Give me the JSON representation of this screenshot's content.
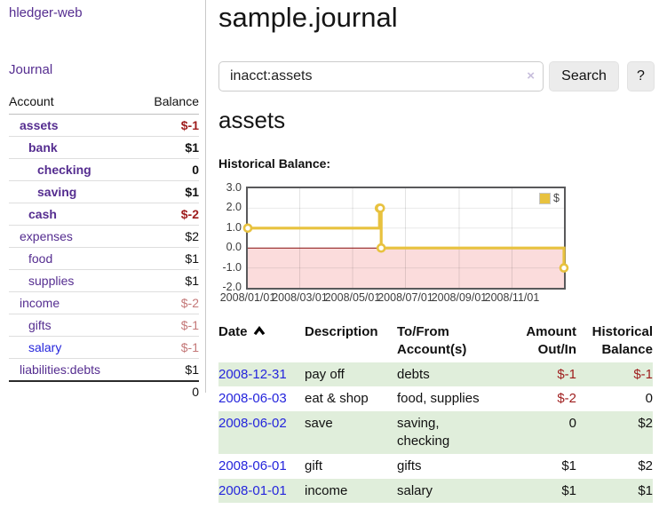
{
  "brand": "hledger-web",
  "nav": {
    "journal": "Journal"
  },
  "sidebar": {
    "headers": {
      "account": "Account",
      "balance": "Balance"
    },
    "accounts": [
      {
        "name": "assets",
        "balance": "$-1"
      },
      {
        "name": "bank",
        "balance": "$1"
      },
      {
        "name": "checking",
        "balance": "0"
      },
      {
        "name": "saving",
        "balance": "$1"
      },
      {
        "name": "cash",
        "balance": "$-2"
      },
      {
        "name": "expenses",
        "balance": "$2"
      },
      {
        "name": "food",
        "balance": "$1"
      },
      {
        "name": "supplies",
        "balance": "$1"
      },
      {
        "name": "income",
        "balance": "$-2"
      },
      {
        "name": "gifts",
        "balance": "$-1"
      },
      {
        "name": "salary",
        "balance": "$-1"
      },
      {
        "name": "liabilities:debts",
        "balance": "$1"
      }
    ],
    "total": "0"
  },
  "main": {
    "title": "sample.journal",
    "search": {
      "value": "inacct:assets",
      "clear_icon": "×",
      "search_button": "Search",
      "help_button": "?"
    },
    "account_heading": "assets",
    "chart_title": "Historical Balance:"
  },
  "chart_data": {
    "type": "line",
    "step": true,
    "title": "Historical Balance",
    "series": [
      {
        "name": "$",
        "color": "#e8c23f",
        "points": [
          [
            "2008-01-01",
            1
          ],
          [
            "2008-06-01",
            2
          ],
          [
            "2008-06-02",
            2
          ],
          [
            "2008-06-03",
            0
          ],
          [
            "2008-12-31",
            -1
          ]
        ]
      }
    ],
    "x_range": [
      "2008-01-01",
      "2008-12-31"
    ],
    "ylim": [
      -2,
      3
    ],
    "y_ticks": [
      "3.0",
      "2.0",
      "1.0",
      "0.0",
      "-1.0",
      "-2.0"
    ],
    "x_ticks": [
      "2008/01/01",
      "2008/03/01",
      "2008/05/01",
      "2008/07/01",
      "2008/09/01",
      "2008/11/01"
    ],
    "legend": {
      "label": "$",
      "position": "top-right"
    },
    "negative_fill": "#fbdcdc",
    "zero_line_color": "#8c1212",
    "grid": true
  },
  "register": {
    "headers": {
      "date": "Date",
      "description": "Description",
      "accounts": "To/From Account(s)",
      "amount": "Amount Out/In",
      "balance": "Historical Balance"
    },
    "sort": {
      "column": "date",
      "direction": "ascending"
    },
    "rows": [
      {
        "date": "2008-12-31",
        "description": "pay off",
        "accounts": "debts",
        "amount": "$-1",
        "balance": "$-1"
      },
      {
        "date": "2008-06-03",
        "description": "eat & shop",
        "accounts": "food, supplies",
        "amount": "$-2",
        "balance": "0"
      },
      {
        "date": "2008-06-02",
        "description": "save",
        "accounts": "saving, checking",
        "amount": "0",
        "balance": "$2"
      },
      {
        "date": "2008-06-01",
        "description": "gift",
        "accounts": "gifts",
        "amount": "$1",
        "balance": "$2"
      },
      {
        "date": "2008-01-01",
        "description": "income",
        "accounts": "salary",
        "amount": "$1",
        "balance": "$1"
      }
    ]
  },
  "colors": {
    "link_purple": "#552d90",
    "link_blue": "#2525dc",
    "negative_strong": "#9e1c1c",
    "negative_weak": "#c47878",
    "row_green": "#e0eedb",
    "chart_gold": "#e8c23f"
  }
}
